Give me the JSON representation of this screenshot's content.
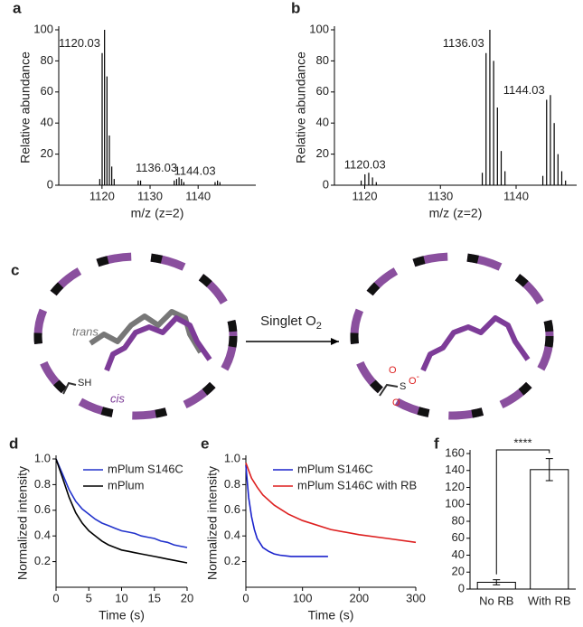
{
  "chart_data": [
    {
      "type": "stem",
      "label": "a",
      "x_label": "m/z (z=2)",
      "y_label": "Relative abundance",
      "color": "#000000",
      "xlim": [
        1111,
        1152
      ],
      "xticks": [
        1120,
        1130,
        1140
      ],
      "ylim": [
        0,
        100
      ],
      "yticks": [
        0,
        20,
        40,
        60,
        80,
        100
      ],
      "x": [
        1119.53,
        1120.03,
        1120.53,
        1121.03,
        1121.53,
        1122.03,
        1122.53,
        1127.53,
        1128.03,
        1135.03,
        1135.53,
        1136.03,
        1136.53,
        1137.03,
        1143.53,
        1144.03,
        1144.53
      ],
      "values": [
        4,
        85,
        100,
        70,
        32,
        12,
        4,
        3,
        3,
        3,
        4,
        5,
        4,
        2,
        2,
        3,
        2
      ],
      "annotations": [
        {
          "text": "1120.03",
          "x": 1120.03,
          "y": 85
        },
        {
          "text": "1136.03",
          "x": 1136.03,
          "y": 5
        },
        {
          "text": "1144.03",
          "x": 1144.03,
          "y": 3
        }
      ]
    },
    {
      "type": "stem",
      "label": "b",
      "x_label": "m/z (z=2)",
      "y_label": "Relative abundance",
      "color": "#000000",
      "xlim": [
        1116,
        1148
      ],
      "xticks": [
        1120,
        1130,
        1140
      ],
      "ylim": [
        0,
        100
      ],
      "yticks": [
        0,
        20,
        40,
        60,
        80,
        100
      ],
      "x": [
        1119.53,
        1120.03,
        1120.53,
        1121.03,
        1121.53,
        1135.53,
        1136.03,
        1136.53,
        1137.03,
        1137.53,
        1138.03,
        1138.53,
        1143.53,
        1144.03,
        1144.53,
        1145.03,
        1145.53,
        1146.03,
        1146.53
      ],
      "values": [
        3,
        7,
        8,
        5,
        2,
        8,
        85,
        100,
        80,
        50,
        22,
        9,
        6,
        55,
        58,
        40,
        20,
        9,
        3
      ],
      "annotations": [
        {
          "text": "1120.03",
          "x": 1120.03,
          "y": 7
        },
        {
          "text": "1136.03",
          "x": 1136.03,
          "y": 85
        },
        {
          "text": "1144.03",
          "x": 1144.03,
          "y": 55
        }
      ]
    },
    {
      "type": "line",
      "label": "d",
      "x_label": "Time (s)",
      "y_label": "Normalized intensity",
      "legend": "upper right",
      "xlim": [
        0,
        20
      ],
      "xticks": [
        0,
        5,
        10,
        15,
        20
      ],
      "ylim": [
        0,
        1
      ],
      "yticks": [
        {
          "value": 0.2,
          "label": "0.2"
        },
        {
          "value": 0.4,
          "label": "0.4"
        },
        {
          "value": 0.6,
          "label": "0.6"
        },
        {
          "value": 0.8,
          "label": "0.8"
        },
        {
          "value": 1,
          "label": "1.0"
        }
      ],
      "x": [
        0,
        1,
        2,
        3,
        4,
        5,
        6,
        7,
        8,
        9,
        10,
        11,
        12,
        13,
        14,
        15,
        16,
        17,
        18,
        19,
        20
      ],
      "series": [
        {
          "name": "mPlum S146C",
          "color": "#2233cc",
          "values": [
            1.0,
            0.88,
            0.76,
            0.67,
            0.61,
            0.57,
            0.53,
            0.5,
            0.48,
            0.46,
            0.44,
            0.43,
            0.42,
            0.4,
            0.39,
            0.38,
            0.36,
            0.35,
            0.33,
            0.32,
            0.31
          ]
        },
        {
          "name": "mPlum",
          "color": "#000000",
          "values": [
            1.0,
            0.85,
            0.7,
            0.58,
            0.5,
            0.44,
            0.4,
            0.36,
            0.33,
            0.31,
            0.29,
            0.28,
            0.27,
            0.26,
            0.25,
            0.24,
            0.23,
            0.22,
            0.21,
            0.2,
            0.19
          ]
        }
      ]
    },
    {
      "type": "line",
      "label": "e",
      "x_label": "Time (s)",
      "y_label": "Normalized intensity",
      "legend": "upper right",
      "xlim": [
        0,
        300
      ],
      "xticks": [
        0,
        100,
        200,
        300
      ],
      "ylim": [
        0,
        1
      ],
      "yticks": [
        {
          "value": 0.2,
          "label": "0.2"
        },
        {
          "value": 0.4,
          "label": "0.4"
        },
        {
          "value": 0.6,
          "label": "0.6"
        },
        {
          "value": 0.8,
          "label": "0.8"
        },
        {
          "value": 1,
          "label": "1.0"
        }
      ],
      "series": [
        {
          "name": "mPlum S146C",
          "color": "#1a22cc",
          "x": [
            0,
            5,
            10,
            15,
            20,
            30,
            40,
            50,
            60,
            80,
            100,
            120,
            145
          ],
          "values": [
            0.95,
            0.7,
            0.55,
            0.45,
            0.38,
            0.31,
            0.28,
            0.26,
            0.25,
            0.24,
            0.24,
            0.24,
            0.24
          ]
        },
        {
          "name": "mPlum S146C with RB",
          "color": "#dd1f1f",
          "x": [
            0,
            10,
            20,
            30,
            50,
            75,
            100,
            150,
            200,
            250,
            300
          ],
          "values": [
            0.97,
            0.85,
            0.78,
            0.72,
            0.64,
            0.57,
            0.52,
            0.45,
            0.41,
            0.38,
            0.35
          ]
        }
      ]
    },
    {
      "type": "bar",
      "label": "f",
      "color": "#ffffff",
      "categories": [
        "No RB",
        "With RB"
      ],
      "values": [
        8,
        141
      ],
      "errors": [
        3,
        13
      ],
      "ylim": [
        0,
        160
      ],
      "yticks": [
        0,
        20,
        40,
        60,
        80,
        100,
        120,
        140,
        160
      ],
      "annotation": "****"
    }
  ],
  "diagram": {
    "label": "c",
    "left": {
      "trans": "trans",
      "cis": "cis",
      "thiol": "SH"
    },
    "arrow": {
      "text": "Singlet O",
      "subscript": "2"
    },
    "right": {
      "sulfur": "S",
      "oxygen_1": "O",
      "oxygen_2": "O",
      "charge": "-"
    }
  }
}
